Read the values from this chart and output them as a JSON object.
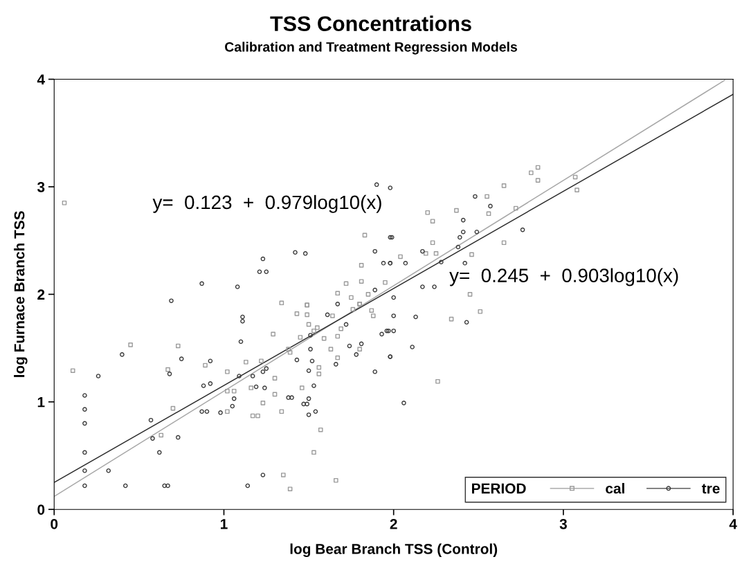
{
  "chart_data": {
    "type": "scatter",
    "title": "TSS Concentrations",
    "subtitle": "Calibration and Treatment Regression Models",
    "xlabel": "log Bear Branch TSS (Control)",
    "ylabel": "log Furnace Branch TSS",
    "xlim": [
      0,
      4
    ],
    "ylim": [
      0,
      4
    ],
    "xticks": [
      0,
      1,
      2,
      3,
      4
    ],
    "yticks": [
      0,
      1,
      2,
      3,
      4
    ],
    "grid": false,
    "legend": "bottom right",
    "legend_title": "PERIOD",
    "annotations": [
      "y=  0.123  +  0.979log10(x)",
      "y=  0.245  +  0.903log10(x)"
    ],
    "series": [
      {
        "name": "cal",
        "marker": "square",
        "color": "#9a9a9a",
        "x": [
          0.11,
          0.45,
          0.73,
          0.67,
          0.7,
          0.63,
          0.89,
          1.02,
          1.02,
          1.06,
          1.02,
          1.13,
          1.22,
          1.3,
          1.16,
          1.23,
          1.3,
          1.17,
          1.2,
          1.34,
          1.35,
          1.39,
          1.39,
          1.38,
          1.29,
          1.45,
          1.46,
          1.56,
          1.56,
          1.57,
          1.53,
          1.43,
          1.49,
          1.49,
          1.5,
          1.55,
          1.53,
          1.59,
          1.63,
          1.67,
          1.67,
          1.69,
          1.64,
          1.66,
          1.76,
          1.8,
          1.87,
          1.88,
          1.8,
          0.06,
          1.83,
          1.81,
          1.72,
          1.81,
          1.95,
          1.67,
          1.75,
          1.85,
          1.34,
          1.49,
          1.8,
          2.81,
          2.85,
          2.85,
          2.65,
          2.55,
          2.56,
          2.72,
          3.07,
          3.08,
          2.65,
          2.46,
          2.23,
          2.25,
          2.19,
          2.04,
          2.23,
          2.2,
          2.45,
          2.37,
          2.34,
          2.51,
          2.26
        ],
        "values": [
          1.29,
          1.53,
          1.52,
          1.3,
          0.94,
          0.69,
          1.34,
          1.28,
          1.1,
          1.1,
          0.91,
          1.37,
          1.38,
          1.22,
          1.13,
          0.99,
          1.07,
          0.87,
          0.87,
          0.91,
          0.32,
          0.19,
          1.46,
          1.49,
          1.63,
          1.6,
          1.13,
          1.32,
          1.26,
          0.74,
          0.53,
          1.82,
          1.81,
          1.9,
          1.72,
          1.69,
          1.66,
          1.59,
          1.49,
          1.61,
          1.41,
          1.68,
          1.8,
          0.27,
          1.86,
          1.49,
          1.85,
          1.8,
          1.91,
          2.85,
          2.55,
          2.27,
          2.1,
          2.12,
          2.11,
          2.01,
          1.97,
          2.0,
          1.92,
          1.9,
          1.91,
          3.13,
          3.18,
          3.06,
          3.01,
          2.91,
          2.75,
          2.8,
          3.09,
          2.97,
          2.48,
          2.37,
          2.48,
          2.38,
          2.38,
          2.35,
          2.68,
          2.76,
          2.0,
          2.78,
          1.77,
          1.84,
          1.19
        ]
      },
      {
        "name": "tre",
        "marker": "circle",
        "color": "#3a3a3a",
        "x": [
          0.18,
          0.18,
          0.18,
          0.18,
          0.18,
          0.18,
          0.26,
          0.4,
          0.32,
          0.42,
          0.57,
          0.58,
          0.62,
          0.65,
          0.67,
          0.68,
          0.75,
          0.73,
          0.87,
          0.9,
          0.88,
          0.92,
          0.92,
          0.98,
          1.05,
          1.06,
          1.09,
          1.1,
          1.11,
          1.11,
          1.14,
          1.17,
          1.19,
          1.24,
          1.23,
          1.25,
          1.23,
          1.38,
          1.4,
          1.43,
          1.47,
          1.49,
          1.5,
          1.5,
          1.51,
          1.51,
          1.52,
          1.5,
          1.53,
          1.54,
          1.61,
          1.66,
          1.67,
          1.72,
          1.74,
          1.78,
          1.81,
          1.89,
          1.93,
          1.96,
          1.98,
          1.9,
          1.98,
          1.42,
          1.48,
          1.23,
          1.21,
          1.25,
          0.87,
          1.08,
          0.69,
          1.89,
          1.94,
          1.98,
          1.89,
          1.99,
          2.48,
          2.57,
          2.41,
          2.41,
          2.49,
          2.39,
          2.38,
          2.42,
          2.76,
          2.28,
          2.17,
          1.98,
          2.17,
          2.24,
          1.98,
          2.07,
          2.0,
          2.0,
          2.13,
          2.43,
          1.97,
          2.0,
          2.11,
          1.98,
          2.06
        ],
        "values": [
          1.06,
          0.93,
          0.8,
          0.53,
          0.36,
          0.22,
          1.24,
          1.44,
          0.36,
          0.22,
          0.83,
          0.66,
          0.53,
          0.22,
          0.22,
          1.26,
          1.4,
          0.67,
          0.91,
          0.91,
          1.15,
          1.17,
          1.38,
          0.9,
          0.96,
          1.03,
          1.24,
          1.56,
          1.79,
          1.75,
          0.22,
          1.24,
          1.14,
          1.13,
          1.28,
          1.31,
          0.32,
          1.04,
          1.04,
          1.39,
          0.98,
          0.98,
          1.03,
          0.88,
          1.49,
          1.62,
          1.38,
          1.29,
          1.15,
          0.91,
          1.81,
          1.35,
          1.91,
          1.72,
          1.52,
          1.44,
          1.54,
          1.28,
          1.63,
          1.66,
          1.42,
          3.02,
          2.99,
          2.39,
          2.38,
          2.33,
          2.21,
          2.21,
          2.1,
          2.07,
          1.94,
          2.4,
          2.29,
          2.29,
          2.04,
          2.53,
          2.91,
          2.82,
          2.69,
          2.58,
          2.58,
          2.53,
          2.44,
          2.29,
          2.6,
          2.3,
          2.4,
          2.53,
          2.07,
          2.07,
          2.29,
          2.29,
          1.97,
          1.8,
          1.79,
          1.74,
          1.66,
          1.66,
          1.51,
          1.42,
          0.99
        ]
      },
      {
        "type": "line",
        "color": "#a8a8a8",
        "x": [
          0,
          3.95
        ],
        "values": [
          0.12,
          3.99
        ]
      },
      {
        "type": "line",
        "color": "#303030",
        "x": [
          0,
          4
        ],
        "values": [
          0.25,
          3.86
        ]
      }
    ]
  }
}
